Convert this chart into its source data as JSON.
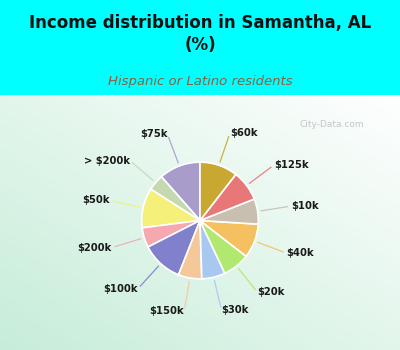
{
  "title": "Income distribution in Samantha, AL\n(%)",
  "subtitle": "Hispanic or Latino residents",
  "title_color": "#111111",
  "subtitle_color": "#8B6040",
  "background_cyan": "#00FFFF",
  "background_chart_color": "#d8ede4",
  "watermark": "City-Data.com",
  "labels": [
    "$75k",
    "> $200k",
    "$50k",
    "$200k",
    "$100k",
    "$150k",
    "$30k",
    "$20k",
    "$40k",
    "$10k",
    "$125k",
    "$60k"
  ],
  "values": [
    11.5,
    4.5,
    11.0,
    5.5,
    11.5,
    6.5,
    6.5,
    7.5,
    9.5,
    7.0,
    8.5,
    10.5
  ],
  "colors": [
    "#a89ccb",
    "#c5d9b0",
    "#f5f07a",
    "#f5a8b0",
    "#8080cc",
    "#f5c89a",
    "#a8c8f0",
    "#b0e870",
    "#f5c060",
    "#c8bfb0",
    "#e87878",
    "#c8a830"
  ],
  "startangle": 90,
  "figsize": [
    4.0,
    3.5
  ],
  "dpi": 100
}
